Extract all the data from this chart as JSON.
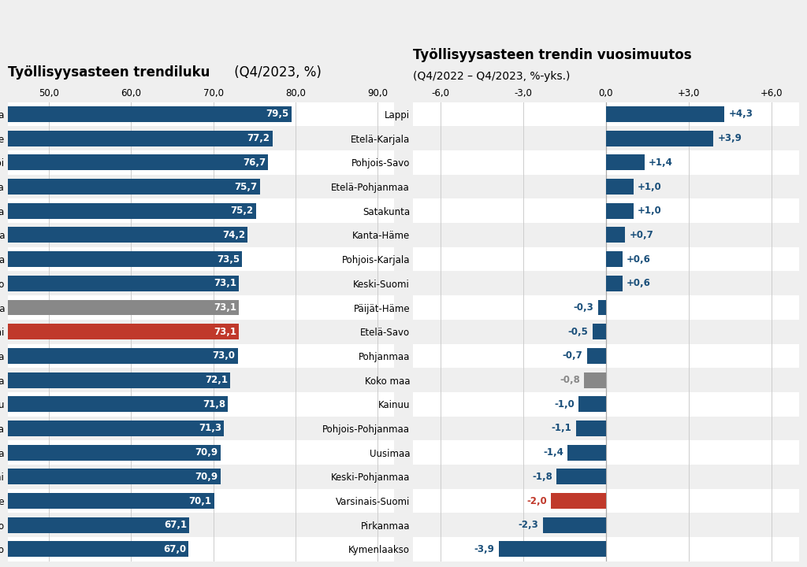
{
  "left_title_bold": "Työllisyysasteen trendiluku",
  "left_title_normal": " (Q4/2023, %)",
  "right_title_bold": "Työllisyysasteen trendin vuosimuutos",
  "right_title_normal": "(Q4/2022 – Q4/2023, %-yks.)",
  "left_categories": [
    "Pohjanmaa",
    "Kanta-Häme",
    "Lappi",
    "Etelä-Pohjanmaa",
    "Etelä-Karjala",
    "Uusimaa",
    "Satakunta",
    "Pohjois-Savo",
    "Koko maa",
    "Varsinais-Suomi",
    "Keski-Pohjanmaa",
    "Pirkanmaa",
    "Kainuu",
    "Pohjois-Pohjanmaa",
    "Pohjois-Karjala",
    "Keski-Suomi",
    "Päijät-Häme",
    "Etelä-Savo",
    "Kymenlaakso"
  ],
  "left_values": [
    79.5,
    77.2,
    76.7,
    75.7,
    75.2,
    74.2,
    73.5,
    73.1,
    73.1,
    73.1,
    73.0,
    72.1,
    71.8,
    71.3,
    70.9,
    70.9,
    70.1,
    67.1,
    67.0
  ],
  "left_colors": [
    "#1a4f7a",
    "#1a4f7a",
    "#1a4f7a",
    "#1a4f7a",
    "#1a4f7a",
    "#1a4f7a",
    "#1a4f7a",
    "#1a4f7a",
    "#888888",
    "#c0392b",
    "#1a4f7a",
    "#1a4f7a",
    "#1a4f7a",
    "#1a4f7a",
    "#1a4f7a",
    "#1a4f7a",
    "#1a4f7a",
    "#1a4f7a",
    "#1a4f7a"
  ],
  "left_xlim": [
    45.0,
    92.0
  ],
  "left_xticks": [
    50.0,
    60.0,
    70.0,
    80.0,
    90.0
  ],
  "right_categories": [
    "Lappi",
    "Etelä-Karjala",
    "Pohjois-Savo",
    "Etelä-Pohjanmaa",
    "Satakunta",
    "Kanta-Häme",
    "Pohjois-Karjala",
    "Keski-Suomi",
    "Päijät-Häme",
    "Etelä-Savo",
    "Pohjanmaa",
    "Koko maa",
    "Kainuu",
    "Pohjois-Pohjanmaa",
    "Uusimaa",
    "Keski-Pohjanmaa",
    "Varsinais-Suomi",
    "Pirkanmaa",
    "Kymenlaakso"
  ],
  "right_values": [
    4.3,
    3.9,
    1.4,
    1.0,
    1.0,
    0.7,
    0.6,
    0.6,
    -0.3,
    -0.5,
    -0.7,
    -0.8,
    -1.0,
    -1.1,
    -1.4,
    -1.8,
    -2.0,
    -2.3,
    -3.9
  ],
  "right_colors": [
    "#1a4f7a",
    "#1a4f7a",
    "#1a4f7a",
    "#1a4f7a",
    "#1a4f7a",
    "#1a4f7a",
    "#1a4f7a",
    "#1a4f7a",
    "#1a4f7a",
    "#1a4f7a",
    "#1a4f7a",
    "#888888",
    "#1a4f7a",
    "#1a4f7a",
    "#1a4f7a",
    "#1a4f7a",
    "#c0392b",
    "#1a4f7a",
    "#1a4f7a"
  ],
  "right_xlim": [
    -7.0,
    7.0
  ],
  "right_xticks": [
    -6.0,
    -3.0,
    0.0,
    3.0,
    6.0
  ],
  "bg_color": "#efefef",
  "row_color_even": "#ffffff",
  "bar_height": 0.65,
  "dark_blue": "#1a4f7a",
  "gray": "#888888",
  "red": "#c0392b"
}
